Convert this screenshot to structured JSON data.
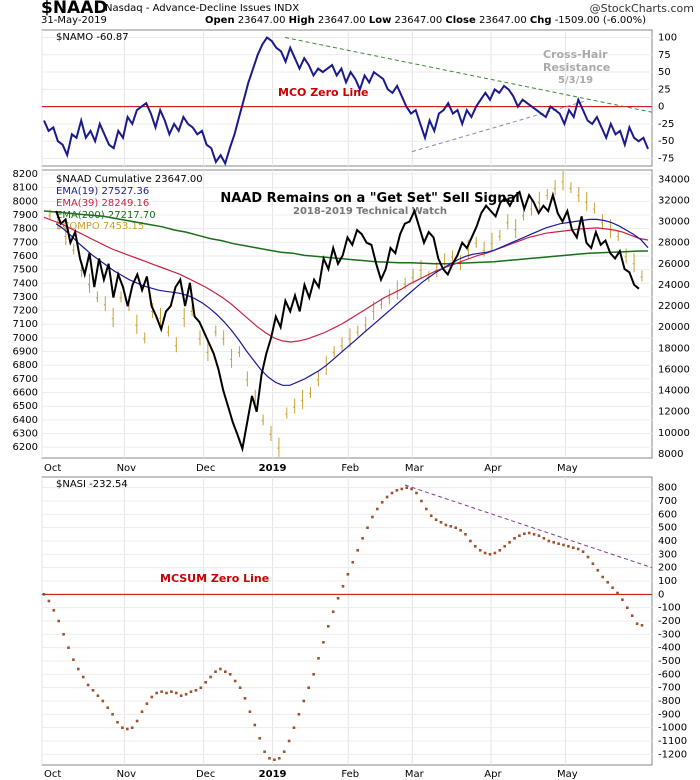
{
  "header": {
    "symbol": "$NAAD",
    "title": "Nasdaq - Advance-Decline Issues INDX",
    "date": "31-May-2019",
    "open_label": "Open",
    "open": "23647.00",
    "high_label": "High",
    "high": "23647.00",
    "low_label": "Low",
    "low": "23647.00",
    "close_label": "Close",
    "close": "23647.00",
    "chg_label": "Chg",
    "chg": "-1509.00 (-6.00%)",
    "source": "@StockCharts.com"
  },
  "colors": {
    "namo": "#1a1a8c",
    "naad": "#000000",
    "ema19": "#1a1aa0",
    "ema39": "#cc2244",
    "ema200": "#1a6e1a",
    "compo": "#c8a030",
    "zero": "#cc0000",
    "trend_green": "#3a8a3a",
    "trend_gray": "#8888aa",
    "nasi": "#a0522d",
    "trend_purple": "#8a3a8a",
    "title_blue": "#1a1aa0"
  },
  "chart_data": [
    {
      "type": "line",
      "panel": "top",
      "legend": "$NAMO -60.87",
      "annotations": [
        "MCO Zero Line",
        "Cross-Hair",
        "Resistance",
        "5/3/19"
      ],
      "ylim": [
        -80,
        105
      ],
      "y_ticks": [
        100,
        75,
        50,
        25,
        0,
        -25,
        -50,
        -75
      ],
      "series": [
        {
          "name": "$NAMO",
          "values": [
            -20,
            -35,
            -30,
            -50,
            -55,
            -70,
            -40,
            -45,
            -20,
            -45,
            -35,
            -50,
            -25,
            -40,
            -55,
            -60,
            -35,
            -45,
            -15,
            -25,
            -5,
            0,
            5,
            -10,
            -30,
            -5,
            -20,
            -40,
            -25,
            -35,
            -15,
            -25,
            -30,
            -40,
            -35,
            -55,
            -60,
            -80,
            -70,
            -82,
            -60,
            -40,
            -15,
            10,
            35,
            55,
            75,
            90,
            100,
            95,
            85,
            80,
            65,
            85,
            70,
            55,
            70,
            60,
            45,
            55,
            50,
            55,
            60,
            45,
            55,
            35,
            50,
            40,
            25,
            45,
            35,
            50,
            45,
            40,
            25,
            20,
            30,
            15,
            0,
            -10,
            -5,
            -25,
            -45,
            -20,
            -35,
            -10,
            -5,
            5,
            -10,
            -5,
            -25,
            -5,
            -15,
            0,
            10,
            20,
            10,
            25,
            20,
            30,
            25,
            15,
            0,
            10,
            5,
            0,
            -5,
            -10,
            -15,
            0,
            -5,
            -10,
            -25,
            -5,
            -15,
            10,
            -5,
            -20,
            -25,
            -15,
            -30,
            -45,
            -25,
            -40,
            -35,
            -55,
            -30,
            -45,
            -50,
            -45,
            -61
          ]
        }
      ]
    },
    {
      "type": "line",
      "panel": "middle",
      "title": "NAAD Remains on a \"Get Set\" Sell Signal",
      "subtitle": "2018-2019 Technical Watch",
      "legend": [
        "$NAAD Cumulative 23647.00",
        "EMA(19) 27527.36",
        "EMA(39) 28249.16",
        "EMA(200) 27217.70",
        "$COMPO 7453.15"
      ],
      "ylim_left": [
        6150,
        8200
      ],
      "y_ticks_left": [
        8200,
        8100,
        8000,
        7900,
        7800,
        7700,
        7600,
        7500,
        7400,
        7300,
        7200,
        7100,
        7000,
        6900,
        6800,
        6700,
        6600,
        6500,
        6400,
        6300,
        6200
      ],
      "ylim_right": [
        8000,
        34500
      ],
      "y_ticks_right": [
        34000,
        32000,
        30000,
        28000,
        26000,
        24000,
        22000,
        20000,
        18000,
        16000,
        14000,
        12000,
        10000,
        8000
      ],
      "x_tick_labels": [
        "Oct",
        "Nov",
        "Dec",
        "2019",
        "Feb",
        "Mar",
        "Apr",
        "May"
      ],
      "series": [
        {
          "name": "$NAAD Cumulative",
          "axis": "right",
          "values": [
            31000,
            29800,
            30200,
            28000,
            29000,
            26500,
            25000,
            27000,
            23800,
            26500,
            24500,
            26000,
            22800,
            25000,
            23800,
            22000,
            24000,
            25000,
            23500,
            24800,
            22000,
            21000,
            19800,
            21500,
            22000,
            23800,
            24500,
            22000,
            24200,
            21000,
            20500,
            19500,
            18500,
            17500,
            16000,
            14000,
            12500,
            11000,
            9800,
            8500,
            11000,
            13500,
            12000,
            15500,
            17500,
            19000,
            21000,
            20000,
            22500,
            21500,
            23000,
            21500,
            24000,
            22800,
            24500,
            23800,
            26500,
            25500,
            27500,
            26000,
            26800,
            28500,
            27800,
            29200,
            28800,
            28000,
            27800,
            26000,
            24500,
            25500,
            27500,
            27000,
            28800,
            29800,
            30000,
            31000,
            29500,
            28000,
            29000,
            28500,
            26500,
            25500,
            25000,
            26000,
            26800,
            28000,
            27500,
            28500,
            29500,
            30800,
            31500,
            31000,
            30500,
            31800,
            32200,
            31500,
            32400,
            32800,
            31200,
            32500,
            31800,
            30800,
            31500,
            31000,
            32500,
            30800,
            30000,
            31000,
            29200,
            28500,
            30500,
            28000,
            27500,
            29000,
            27800,
            28200,
            27000,
            26500,
            27200,
            25500,
            25200,
            24000,
            23647
          ]
        },
        {
          "name": "EMA(19)",
          "axis": "right",
          "values": [
            29800,
            29300,
            28700,
            28000,
            27400,
            26800,
            26300,
            25800,
            25300,
            24900,
            24500,
            24200,
            23900,
            23700,
            23500,
            23400,
            23300,
            23200,
            23000,
            22700,
            22300,
            21800,
            21200,
            20500,
            19700,
            18800,
            17800,
            16900,
            16000,
            15300,
            14800,
            14500,
            14500,
            14800,
            15100,
            15500,
            15900,
            16400,
            17000,
            17600,
            18200,
            18800,
            19400,
            20000,
            20600,
            21200,
            21800,
            22400,
            23000,
            23600,
            24200,
            24700,
            25200,
            25600,
            26000,
            26400,
            26700,
            26900,
            27000,
            27100,
            27300,
            27600,
            27900,
            28200,
            28500,
            28800,
            29100,
            29400,
            29600,
            29800,
            29900,
            30000,
            30100,
            30200,
            30200,
            30100,
            29900,
            29600,
            29200,
            28800,
            28300,
            27527
          ]
        },
        {
          "name": "EMA(39)",
          "axis": "right",
          "values": [
            30400,
            30100,
            29800,
            29400,
            29000,
            28600,
            28200,
            27800,
            27400,
            27100,
            26800,
            26500,
            26200,
            25900,
            25600,
            25300,
            25000,
            24600,
            24200,
            23800,
            23300,
            22800,
            22200,
            21500,
            20800,
            20100,
            19500,
            19000,
            18700,
            18600,
            18700,
            18900,
            19200,
            19500,
            19900,
            20300,
            20800,
            21300,
            21800,
            22300,
            22800,
            23200,
            23600,
            24100,
            24500,
            24900,
            25300,
            25600,
            25900,
            26200,
            26500,
            26800,
            27000,
            27300,
            27600,
            27900,
            28200,
            28500,
            28700,
            28900,
            29000,
            29100,
            29200,
            29300,
            29350,
            29400,
            29300,
            29200,
            29000,
            28700,
            28400,
            28249
          ]
        },
        {
          "name": "EMA(200)",
          "axis": "right",
          "values": [
            31000,
            30900,
            30800,
            30700,
            30600,
            30500,
            30300,
            30100,
            29900,
            29700,
            29500,
            29200,
            29000,
            28700,
            28400,
            28200,
            27900,
            27700,
            27500,
            27300,
            27100,
            27000,
            26800,
            26700,
            26600,
            26500,
            26400,
            26300,
            26200,
            26150,
            26100,
            26100,
            26050,
            26000,
            26000,
            26050,
            26100,
            26150,
            26200,
            26300,
            26400,
            26500,
            26600,
            26700,
            26800,
            26900,
            27000,
            27050,
            27100,
            27150,
            27200,
            27217
          ]
        },
        {
          "name": "$COMPO",
          "axis": "left",
          "values": [
            7900,
            7850,
            7750,
            7650,
            7500,
            7400,
            7300,
            7250,
            7150,
            7300,
            7250,
            7100,
            7000,
            7200,
            7150,
            7050,
            6950,
            7150,
            7200,
            7000,
            6900,
            7050,
            7000,
            6850,
            6900,
            6700,
            6550,
            6400,
            6300,
            6200,
            6450,
            6500,
            6550,
            6600,
            6700,
            6800,
            6900,
            6950,
            7000,
            7050,
            7100,
            7200,
            7250,
            7300,
            7350,
            7400,
            7450,
            7500,
            7450,
            7500,
            7550,
            7600,
            7550,
            7650,
            7700,
            7650,
            7700,
            7750,
            7850,
            7800,
            7900,
            7950,
            8000,
            8050,
            8100,
            8150,
            8100,
            8050,
            8000,
            7950,
            7850,
            7800,
            7750,
            7600,
            7550,
            7453
          ]
        }
      ]
    },
    {
      "type": "scatter",
      "panel": "bottom",
      "legend": "$NASI -232.54",
      "annotations": [
        "MCSUM Zero Line"
      ],
      "ylim": [
        -1250,
        850
      ],
      "y_ticks": [
        800,
        700,
        600,
        500,
        400,
        300,
        200,
        100,
        0,
        -100,
        -200,
        -300,
        -400,
        -500,
        -600,
        -700,
        -800,
        -900,
        -1000,
        -1100,
        -1200
      ],
      "x_tick_labels": [
        "Oct",
        "Nov",
        "Dec",
        "2019",
        "Feb",
        "Mar",
        "Apr",
        "May"
      ],
      "series": [
        {
          "name": "$NASI",
          "values": [
            0,
            -50,
            -120,
            -200,
            -300,
            -400,
            -490,
            -560,
            -620,
            -680,
            -720,
            -760,
            -800,
            -850,
            -900,
            -960,
            -1000,
            -1010,
            -1000,
            -950,
            -880,
            -820,
            -770,
            -740,
            -730,
            -740,
            -730,
            -740,
            -760,
            -750,
            -730,
            -720,
            -700,
            -660,
            -620,
            -580,
            -560,
            -580,
            -600,
            -650,
            -700,
            -780,
            -880,
            -980,
            -1080,
            -1180,
            -1230,
            -1240,
            -1230,
            -1180,
            -1100,
            -1000,
            -900,
            -800,
            -700,
            -600,
            -480,
            -360,
            -240,
            -130,
            -30,
            60,
            150,
            240,
            330,
            420,
            500,
            580,
            640,
            690,
            730,
            760,
            780,
            790,
            800,
            790,
            760,
            700,
            640,
            590,
            560,
            540,
            520,
            510,
            500,
            480,
            450,
            400,
            360,
            330,
            310,
            300,
            310,
            330,
            360,
            390,
            420,
            440,
            455,
            460,
            450,
            440,
            420,
            400,
            390,
            380,
            370,
            360,
            350,
            340,
            320,
            280,
            230,
            180,
            130,
            90,
            50,
            10,
            -40,
            -100,
            -160,
            -220,
            -232
          ]
        }
      ]
    }
  ]
}
